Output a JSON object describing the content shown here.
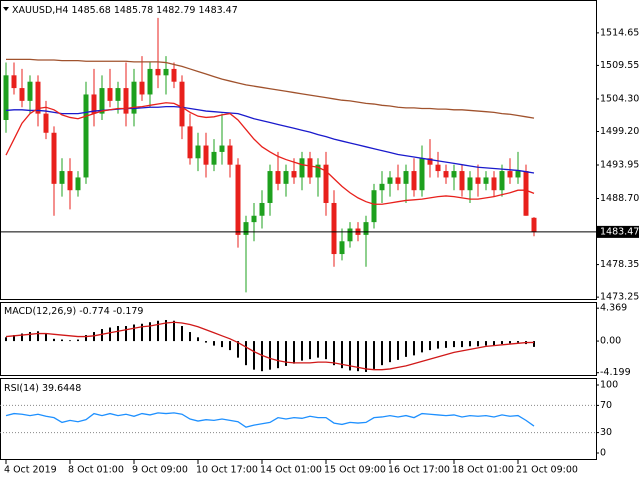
{
  "chart_data": [
    {
      "type": "candlestick",
      "title": "XAUUSD,H4",
      "categories": [
        "4 Oct 2019",
        null,
        null,
        null,
        null,
        null,
        null,
        null,
        "8 Oct 01:00",
        null,
        null,
        null,
        null,
        null,
        null,
        null,
        "9 Oct 09:00",
        null,
        null,
        null,
        null,
        null,
        null,
        null,
        "10 Oct 17:00",
        null,
        null,
        null,
        null,
        null,
        null,
        null,
        "14 Oct 01:00",
        null,
        null,
        null,
        null,
        null,
        null,
        null,
        "15 Oct 09:00",
        null,
        null,
        null,
        null,
        null,
        null,
        null,
        "16 Oct 17:00",
        null,
        null,
        null,
        null,
        null,
        null,
        null,
        "18 Oct 01:00",
        null,
        null,
        null,
        null,
        null,
        null,
        null,
        "21 Oct 09:00",
        null,
        null
      ],
      "open": [
        1501,
        1508,
        1506,
        1504,
        1507,
        1502,
        1499,
        1491,
        1493,
        1490,
        1492,
        1505,
        1502,
        1506,
        1504,
        1506,
        1502,
        1507,
        1505,
        1509,
        1508,
        1509,
        1507,
        1500,
        1495,
        1497,
        1494,
        1496,
        1497,
        1494,
        1483,
        1485,
        1486,
        1488,
        1493,
        1491,
        1493,
        1492,
        1495,
        1492,
        1494,
        1488,
        1480,
        1482,
        1484,
        1483,
        1485,
        1490,
        1491,
        1492,
        1491,
        1493,
        1490,
        1495,
        1494,
        1493,
        1492,
        1493,
        1490,
        1492,
        1491,
        1492,
        1490,
        1493,
        1492,
        1493,
        1485.68
      ],
      "high": [
        1510,
        1510,
        1509,
        1508,
        1508,
        1504,
        1500,
        1495,
        1495,
        1493,
        1507,
        1509,
        1508,
        1509,
        1507,
        1510,
        1509,
        1511,
        1510,
        1517,
        1511,
        1510,
        1508,
        1502,
        1499,
        1499,
        1498,
        1502,
        1498,
        1495,
        1486,
        1488,
        1490,
        1494,
        1496,
        1494,
        1495,
        1496,
        1496,
        1495,
        1496,
        1490,
        1484,
        1485,
        1485,
        1486,
        1491,
        1493,
        1493,
        1494,
        1494,
        1495,
        1497,
        1498,
        1496,
        1494,
        1494,
        1494,
        1493,
        1494,
        1493,
        1493,
        1494,
        1495,
        1496,
        1494,
        1485.78
      ],
      "low": [
        1499,
        1505,
        1503,
        1502,
        1500,
        1498,
        1486,
        1489,
        1487,
        1489,
        1491,
        1500,
        1501,
        1503,
        1502,
        1500,
        1500,
        1504,
        1503,
        1506,
        1505,
        1506,
        1498,
        1494,
        1493,
        1492,
        1493,
        1494,
        1492,
        1481,
        1474,
        1482,
        1484,
        1486,
        1490,
        1489,
        1491,
        1490,
        1491,
        1489,
        1486,
        1478,
        1479,
        1481,
        1482,
        1478,
        1484,
        1488,
        1489,
        1490,
        1488,
        1489,
        1489,
        1492,
        1492,
        1491,
        1490,
        1489,
        1488,
        1489,
        1490,
        1489,
        1489,
        1491,
        1491,
        1486,
        1482.79
      ],
      "close": [
        1508,
        1506,
        1504,
        1507,
        1502,
        1499,
        1491,
        1493,
        1490,
        1492,
        1505,
        1502,
        1506,
        1504,
        1506,
        1502,
        1507,
        1505,
        1509,
        1508,
        1509,
        1507,
        1500,
        1495,
        1497,
        1494,
        1496,
        1497,
        1494,
        1483,
        1485,
        1486,
        1488,
        1493,
        1491,
        1493,
        1492,
        1495,
        1492,
        1494,
        1488,
        1480,
        1482,
        1484,
        1483,
        1485,
        1490,
        1491,
        1492,
        1491,
        1493,
        1490,
        1495,
        1494,
        1493,
        1492,
        1493,
        1490,
        1492,
        1491,
        1492,
        1490,
        1493,
        1492,
        1493,
        1486,
        1483.47
      ],
      "up_color": "#1ea01e",
      "down_color": "#e8201c",
      "series": [
        {
          "color": "#a0522d",
          "values": [
            1510.5,
            1510.5,
            1510.5,
            1510.5,
            1510.4,
            1510.4,
            1510.4,
            1510.3,
            1510.3,
            1510.3,
            1510.2,
            1510.2,
            1510.2,
            1510.2,
            1510.2,
            1510.2,
            1510.1,
            1510.1,
            1510.1,
            1510.1,
            1510,
            1509.7,
            1509.4,
            1509,
            1508.6,
            1508.2,
            1507.8,
            1507.4,
            1507.1,
            1506.8,
            1506.5,
            1506.3,
            1506.1,
            1505.9,
            1505.7,
            1505.5,
            1505.3,
            1505.1,
            1504.9,
            1504.7,
            1504.5,
            1504.3,
            1504.1,
            1504,
            1503.8,
            1503.6,
            1503.5,
            1503.3,
            1503.2,
            1503,
            1502.9,
            1502.9,
            1502.8,
            1502.8,
            1502.7,
            1502.7,
            1502.6,
            1502.6,
            1502.5,
            1502.4,
            1502.3,
            1502.2,
            1502,
            1501.9,
            1501.7,
            1501.5,
            1501.3
          ]
        },
        {
          "color": "#1a1acc",
          "values": [
            1502.5,
            1502.6,
            1502.6,
            1502.5,
            1502.5,
            1502.4,
            1502.2,
            1502,
            1502,
            1502,
            1502.2,
            1502.4,
            1502.5,
            1502.6,
            1502.7,
            1502.8,
            1502.8,
            1502.9,
            1503,
            1503,
            1503.1,
            1503.1,
            1503,
            1502.8,
            1502.6,
            1502.4,
            1502.3,
            1502.2,
            1502.1,
            1502,
            1501.6,
            1501.2,
            1500.9,
            1500.6,
            1500.3,
            1500,
            1499.7,
            1499.4,
            1499.1,
            1498.7,
            1498.4,
            1498,
            1497.7,
            1497.4,
            1497.1,
            1496.8,
            1496.5,
            1496.2,
            1495.9,
            1495.6,
            1495.4,
            1495.2,
            1495,
            1494.8,
            1494.6,
            1494.4,
            1494.2,
            1494,
            1493.8,
            1493.6,
            1493.5,
            1493.4,
            1493.3,
            1493.2,
            1493.1,
            1492.9,
            1492.7
          ]
        },
        {
          "color": "#e8201c",
          "values": [
            1495.5,
            1498,
            1500.5,
            1502,
            1502.8,
            1503,
            1502.6,
            1501.8,
            1501.4,
            1501.2,
            1501.6,
            1502,
            1502.4,
            1502.6,
            1502.8,
            1502.8,
            1503,
            1503.1,
            1503.3,
            1503.5,
            1503.7,
            1503.6,
            1503,
            1502.2,
            1501.6,
            1501.4,
            1501.5,
            1501.8,
            1502,
            1501,
            1499.5,
            1498,
            1496.8,
            1496,
            1495.3,
            1494.8,
            1494.4,
            1494,
            1493.8,
            1493.6,
            1493,
            1491.8,
            1490.6,
            1489.6,
            1488.8,
            1488.2,
            1487.8,
            1487.8,
            1488,
            1488.2,
            1488.4,
            1488.5,
            1488.6,
            1488.8,
            1489,
            1489.1,
            1489,
            1488.8,
            1488.6,
            1488.6,
            1488.8,
            1489,
            1489.3,
            1489.6,
            1490,
            1490,
            1489.5
          ]
        }
      ],
      "ylim": [
        1472.8,
        1519.8
      ],
      "yticks": [
        1514.65,
        1509.55,
        {
          "value": 1504.3,
          "label": "1504.30"
        },
        {
          "value": 1499.2,
          "label": "1499.20"
        },
        1493.95,
        {
          "value": 1488.7,
          "label": "1488.70"
        },
        1478.35,
        1473.25
      ]
    },
    {
      "type": "macd",
      "title": "MACD(12,26,9)",
      "histogram": {
        "color": "#000000",
        "values": [
          0.5,
          0.8,
          1.0,
          1.2,
          1.3,
          1.0,
          0.3,
          0.2,
          0.1,
          0.2,
          0.8,
          1.2,
          1.6,
          1.8,
          2.0,
          2.0,
          2.2,
          2.3,
          2.5,
          2.7,
          2.8,
          2.7,
          2.0,
          1.2,
          0.5,
          -0.2,
          -0.6,
          -0.8,
          -1.2,
          -2.2,
          -3.2,
          -3.8,
          -4.0,
          -3.8,
          -3.6,
          -3.3,
          -3.0,
          -2.6,
          -2.4,
          -2.2,
          -2.4,
          -3.2,
          -3.6,
          -3.9,
          -4.0,
          -4.1,
          -3.7,
          -3.2,
          -2.8,
          -2.5,
          -2.1,
          -1.9,
          -1.5,
          -1.2,
          -1.0,
          -0.9,
          -0.8,
          -0.8,
          -0.7,
          -0.7,
          -0.6,
          -0.6,
          -0.4,
          -0.3,
          -0.2,
          -0.4,
          -0.774
        ]
      },
      "signal": {
        "color": "#d01818",
        "values": [
          0.6,
          0.7,
          0.8,
          0.9,
          1.0,
          1.0,
          0.9,
          0.8,
          0.7,
          0.6,
          0.6,
          0.7,
          0.9,
          1.1,
          1.3,
          1.5,
          1.7,
          1.9,
          2.0,
          2.2,
          2.4,
          2.5,
          2.4,
          2.2,
          1.9,
          1.5,
          1.1,
          0.7,
          0.3,
          -0.2,
          -0.8,
          -1.4,
          -1.9,
          -2.3,
          -2.6,
          -2.8,
          -2.9,
          -2.9,
          -2.9,
          -2.8,
          -2.8,
          -2.9,
          -3.1,
          -3.3,
          -3.5,
          -3.7,
          -3.8,
          -3.8,
          -3.7,
          -3.5,
          -3.3,
          -3.0,
          -2.7,
          -2.4,
          -2.1,
          -1.8,
          -1.5,
          -1.3,
          -1.1,
          -0.9,
          -0.7,
          -0.6,
          -0.5,
          -0.4,
          -0.3,
          -0.2,
          -0.179
        ]
      },
      "ylim": [
        -4.64,
        5.19
      ],
      "yticks": [
        4.369,
        {
          "value": 0,
          "label": "0.00"
        },
        -4.199
      ]
    },
    {
      "type": "line",
      "title": "RSI(14)",
      "series": [
        {
          "color": "#1e90ff",
          "values": [
            55,
            58,
            57,
            55,
            57,
            54,
            52,
            45,
            48,
            46,
            49,
            58,
            55,
            58,
            55,
            57,
            54,
            58,
            56,
            59,
            58,
            59,
            57,
            50,
            47,
            49,
            48,
            50,
            48,
            46,
            38,
            41,
            43,
            45,
            52,
            50,
            52,
            51,
            54,
            52,
            52,
            44,
            42,
            45,
            44,
            45,
            52,
            53,
            55,
            53,
            55,
            52,
            58,
            57,
            56,
            55,
            56,
            53,
            55,
            54,
            55,
            53,
            56,
            54,
            55,
            48,
            39.6448
          ]
        }
      ],
      "ylim": [
        -10.3,
        110.3
      ],
      "yticks": [
        100,
        70,
        30,
        0
      ],
      "levels": [
        70,
        30
      ]
    }
  ]
}
